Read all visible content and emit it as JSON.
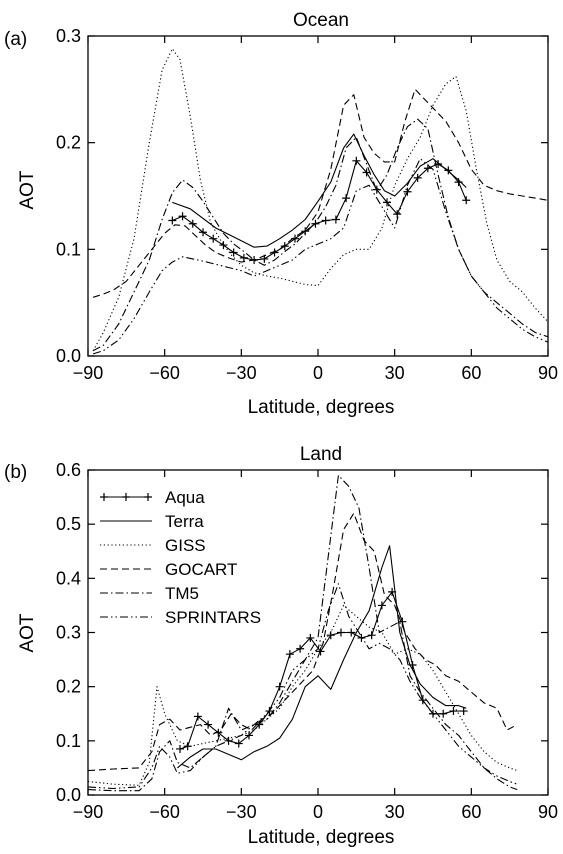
{
  "chart_data": [
    {
      "type": "line",
      "panel_label": "(a)",
      "title": "Ocean",
      "xlabel": "Latitude, degrees",
      "ylabel": "AOT",
      "xlim": [
        -90,
        90
      ],
      "ylim": [
        0.0,
        0.3
      ],
      "xticks": [
        "−90",
        "−60",
        "−30",
        "0",
        "30",
        "60",
        "90"
      ],
      "yticks": [
        "0.0",
        "0.1",
        "0.2",
        "0.3"
      ],
      "series": [
        {
          "name": "Aqua",
          "style": "solid-plus",
          "x": [
            -57,
            -53,
            -49,
            -45,
            -41,
            -37,
            -33,
            -29,
            -25,
            -21,
            -17,
            -13,
            -9,
            -5,
            -1,
            3,
            7,
            11,
            15,
            19,
            23,
            27,
            31,
            35,
            39,
            43,
            47,
            51,
            55,
            58
          ],
          "y": [
            0.127,
            0.131,
            0.124,
            0.116,
            0.11,
            0.104,
            0.097,
            0.092,
            0.09,
            0.091,
            0.097,
            0.103,
            0.11,
            0.117,
            0.124,
            0.127,
            0.128,
            0.148,
            0.183,
            0.172,
            0.156,
            0.144,
            0.133,
            0.154,
            0.167,
            0.176,
            0.18,
            0.174,
            0.163,
            0.146
          ]
        },
        {
          "name": "Terra",
          "style": "solid",
          "x": [
            -57,
            -50,
            -40,
            -30,
            -25,
            -20,
            -15,
            -10,
            -5,
            0,
            5,
            10,
            14,
            18,
            22,
            26,
            30,
            35,
            40,
            45,
            50,
            55,
            58
          ],
          "y": [
            0.144,
            0.138,
            0.12,
            0.108,
            0.102,
            0.103,
            0.11,
            0.118,
            0.128,
            0.145,
            0.163,
            0.195,
            0.208,
            0.188,
            0.17,
            0.155,
            0.15,
            0.162,
            0.178,
            0.185,
            0.175,
            0.165,
            0.158
          ]
        },
        {
          "name": "GISS",
          "style": "dotted",
          "x": [
            -88,
            -84,
            -78,
            -72,
            -66,
            -61,
            -57,
            -54,
            -50,
            -46,
            -42,
            -38,
            -34,
            -30,
            -25,
            -20,
            -15,
            -10,
            -5,
            0,
            5,
            10,
            15,
            20,
            25,
            30,
            35,
            40,
            45,
            50,
            54,
            58,
            62,
            66,
            70,
            75,
            80,
            85,
            90
          ],
          "y": [
            0.005,
            0.022,
            0.055,
            0.11,
            0.2,
            0.268,
            0.288,
            0.278,
            0.225,
            0.165,
            0.125,
            0.108,
            0.095,
            0.085,
            0.078,
            0.075,
            0.073,
            0.07,
            0.067,
            0.066,
            0.082,
            0.095,
            0.1,
            0.1,
            0.12,
            0.16,
            0.185,
            0.205,
            0.235,
            0.255,
            0.262,
            0.23,
            0.175,
            0.125,
            0.09,
            0.07,
            0.06,
            0.045,
            0.032
          ]
        },
        {
          "name": "GOCART",
          "style": "dashed",
          "x": [
            -88,
            -84,
            -80,
            -75,
            -70,
            -65,
            -60,
            -56,
            -52,
            -48,
            -44,
            -40,
            -35,
            -30,
            -25,
            -20,
            -15,
            -10,
            -5,
            0,
            5,
            10,
            14,
            18,
            22,
            26,
            30,
            34,
            38,
            42,
            46,
            50,
            55,
            60,
            65,
            70,
            75,
            80,
            85,
            90
          ],
          "y": [
            0.055,
            0.058,
            0.062,
            0.07,
            0.085,
            0.1,
            0.115,
            0.123,
            0.122,
            0.113,
            0.104,
            0.097,
            0.092,
            0.088,
            0.09,
            0.095,
            0.1,
            0.11,
            0.118,
            0.135,
            0.175,
            0.235,
            0.245,
            0.205,
            0.19,
            0.182,
            0.182,
            0.22,
            0.25,
            0.24,
            0.23,
            0.22,
            0.2,
            0.175,
            0.16,
            0.155,
            0.152,
            0.15,
            0.148,
            0.146
          ]
        },
        {
          "name": "TM5",
          "style": "dash-dot",
          "x": [
            -88,
            -84,
            -78,
            -72,
            -66,
            -61,
            -57,
            -53,
            -49,
            -45,
            -41,
            -37,
            -33,
            -29,
            -25,
            -21,
            -17,
            -13,
            -9,
            -5,
            -1,
            3,
            7,
            11,
            15,
            19,
            23,
            27,
            31,
            35,
            39,
            43,
            47,
            51,
            55,
            60,
            65,
            70,
            75,
            80,
            85,
            90
          ],
          "y": [
            0.005,
            0.01,
            0.03,
            0.06,
            0.09,
            0.128,
            0.153,
            0.165,
            0.158,
            0.145,
            0.13,
            0.115,
            0.105,
            0.098,
            0.09,
            0.085,
            0.09,
            0.098,
            0.105,
            0.115,
            0.125,
            0.14,
            0.16,
            0.195,
            0.205,
            0.18,
            0.155,
            0.17,
            0.195,
            0.215,
            0.222,
            0.213,
            0.17,
            0.13,
            0.1,
            0.075,
            0.06,
            0.05,
            0.04,
            0.03,
            0.022,
            0.018
          ]
        },
        {
          "name": "SPRINTARS",
          "style": "dash-dot-dot",
          "x": [
            -88,
            -84,
            -78,
            -72,
            -66,
            -61,
            -57,
            -53,
            -49,
            -45,
            -40,
            -35,
            -30,
            -25,
            -20,
            -15,
            -10,
            -5,
            0,
            5,
            10,
            15,
            20,
            25,
            30,
            35,
            40,
            45,
            50,
            55,
            60,
            65,
            70,
            75,
            80,
            85,
            90
          ],
          "y": [
            0.002,
            0.005,
            0.015,
            0.035,
            0.06,
            0.08,
            0.088,
            0.093,
            0.091,
            0.089,
            0.086,
            0.083,
            0.08,
            0.075,
            0.08,
            0.085,
            0.09,
            0.1,
            0.105,
            0.11,
            0.12,
            0.155,
            0.16,
            0.14,
            0.12,
            0.16,
            0.185,
            0.175,
            0.135,
            0.1,
            0.075,
            0.06,
            0.045,
            0.035,
            0.025,
            0.018,
            0.013
          ]
        }
      ]
    },
    {
      "type": "line",
      "panel_label": "(b)",
      "title": "Land",
      "xlabel": "Latitude, degrees",
      "ylabel": "AOT",
      "xlim": [
        -90,
        90
      ],
      "ylim": [
        0.0,
        0.6
      ],
      "xticks": [
        "−90",
        "−60",
        "−30",
        "0",
        "30",
        "60",
        "90"
      ],
      "yticks": [
        "0.0",
        "0.1",
        "0.2",
        "0.3",
        "0.4",
        "0.5",
        "0.6"
      ],
      "legend": {
        "placement": "top-left"
      },
      "series": [
        {
          "name": "Aqua",
          "style": "solid-plus",
          "x": [
            -54,
            -51,
            -47,
            -43,
            -39,
            -35,
            -31,
            -27,
            -23,
            -19,
            -15,
            -11,
            -7,
            -3,
            1,
            5,
            9,
            13,
            17,
            21,
            25,
            29,
            33,
            37,
            41,
            45,
            49,
            53,
            57
          ],
          "y": [
            0.085,
            0.09,
            0.145,
            0.13,
            0.115,
            0.1,
            0.095,
            0.11,
            0.13,
            0.155,
            0.2,
            0.26,
            0.27,
            0.29,
            0.265,
            0.295,
            0.3,
            0.3,
            0.29,
            0.295,
            0.35,
            0.375,
            0.32,
            0.24,
            0.175,
            0.15,
            0.15,
            0.155,
            0.155
          ]
        },
        {
          "name": "Terra",
          "style": "solid",
          "x": [
            -55,
            -50,
            -45,
            -40,
            -35,
            -30,
            -25,
            -20,
            -15,
            -10,
            -5,
            0,
            5,
            10,
            15,
            20,
            25,
            28,
            32,
            36,
            40,
            45,
            50,
            55,
            58
          ],
          "y": [
            0.05,
            0.07,
            0.085,
            0.085,
            0.075,
            0.065,
            0.08,
            0.09,
            0.105,
            0.14,
            0.2,
            0.22,
            0.195,
            0.25,
            0.3,
            0.34,
            0.42,
            0.46,
            0.3,
            0.24,
            0.205,
            0.18,
            0.165,
            0.165,
            0.16
          ]
        },
        {
          "name": "GISS",
          "style": "dotted",
          "x": [
            -90,
            -80,
            -70,
            -66,
            -63,
            -60,
            -55,
            -50,
            -45,
            -40,
            -35,
            -30,
            -25,
            -20,
            -15,
            -10,
            -5,
            0,
            5,
            10,
            15,
            20,
            25,
            30,
            35,
            40,
            45,
            50,
            55,
            60,
            65,
            70,
            75,
            78
          ],
          "y": [
            0.025,
            0.02,
            0.018,
            0.06,
            0.2,
            0.15,
            0.1,
            0.09,
            0.095,
            0.1,
            0.105,
            0.11,
            0.12,
            0.14,
            0.16,
            0.2,
            0.23,
            0.27,
            0.3,
            0.35,
            0.33,
            0.31,
            0.3,
            0.26,
            0.27,
            0.26,
            0.23,
            0.19,
            0.15,
            0.11,
            0.08,
            0.06,
            0.05,
            0.045
          ]
        },
        {
          "name": "GOCART",
          "style": "dashed",
          "x": [
            -90,
            -80,
            -70,
            -65,
            -62,
            -58,
            -54,
            -50,
            -46,
            -42,
            -38,
            -34,
            -30,
            -26,
            -22,
            -18,
            -14,
            -10,
            -6,
            -2,
            2,
            6,
            10,
            14,
            18,
            22,
            26,
            30,
            34,
            38,
            42,
            46,
            50,
            55,
            60,
            65,
            70,
            74,
            78
          ],
          "y": [
            0.045,
            0.048,
            0.05,
            0.08,
            0.13,
            0.14,
            0.12,
            0.125,
            0.13,
            0.11,
            0.12,
            0.15,
            0.13,
            0.12,
            0.14,
            0.15,
            0.17,
            0.19,
            0.21,
            0.23,
            0.28,
            0.38,
            0.49,
            0.52,
            0.47,
            0.45,
            0.37,
            0.35,
            0.3,
            0.27,
            0.25,
            0.24,
            0.22,
            0.21,
            0.19,
            0.17,
            0.16,
            0.12,
            0.13
          ]
        },
        {
          "name": "TM5",
          "style": "dash-dot",
          "x": [
            -90,
            -80,
            -70,
            -65,
            -62,
            -58,
            -55,
            -50,
            -45,
            -40,
            -35,
            -30,
            -25,
            -20,
            -15,
            -10,
            -5,
            0,
            4,
            8,
            12,
            16,
            20,
            24,
            28,
            32,
            36,
            40,
            45,
            50,
            55,
            60,
            65,
            70,
            75,
            78
          ],
          "y": [
            0.01,
            0.008,
            0.008,
            0.03,
            0.08,
            0.1,
            0.06,
            0.05,
            0.07,
            0.09,
            0.16,
            0.12,
            0.13,
            0.14,
            0.17,
            0.21,
            0.25,
            0.29,
            0.44,
            0.59,
            0.57,
            0.53,
            0.42,
            0.3,
            0.31,
            0.32,
            0.22,
            0.19,
            0.16,
            0.13,
            0.11,
            0.08,
            0.05,
            0.03,
            0.015,
            0.01
          ]
        },
        {
          "name": "SPRINTARS",
          "style": "dash-dot-dot",
          "x": [
            -90,
            -80,
            -70,
            -65,
            -62,
            -58,
            -55,
            -50,
            -45,
            -40,
            -35,
            -30,
            -25,
            -20,
            -15,
            -10,
            -5,
            0,
            4,
            8,
            12,
            16,
            20,
            24,
            28,
            32,
            36,
            40,
            45,
            50,
            55,
            60,
            65,
            70,
            75,
            78
          ],
          "y": [
            0.015,
            0.012,
            0.015,
            0.05,
            0.09,
            0.07,
            0.04,
            0.045,
            0.07,
            0.09,
            0.1,
            0.11,
            0.13,
            0.15,
            0.18,
            0.23,
            0.25,
            0.27,
            0.34,
            0.39,
            0.33,
            0.3,
            0.27,
            0.28,
            0.27,
            0.25,
            0.21,
            0.18,
            0.15,
            0.12,
            0.09,
            0.07,
            0.05,
            0.035,
            0.025,
            0.02
          ]
        }
      ]
    }
  ]
}
